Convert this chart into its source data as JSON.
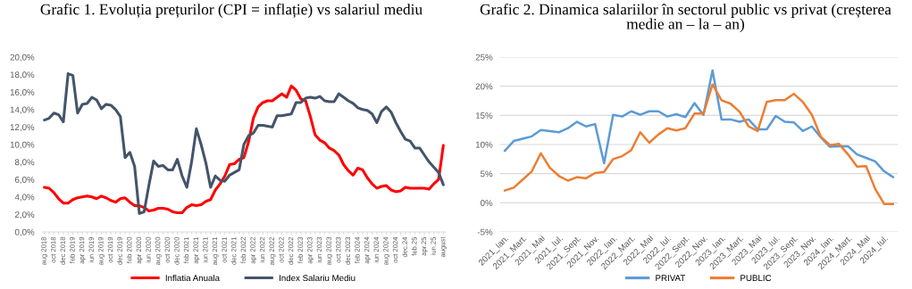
{
  "chart_data": [
    {
      "type": "line",
      "title": "Grafic 1. Evoluția prețurilor (CPI = inflație) vs salariul mediu",
      "categories": [
        "aug 2018",
        null,
        "oct 2018",
        null,
        "dec 2018",
        null,
        "feb 2019",
        null,
        "apr 2019",
        null,
        "iun 2019",
        null,
        "aug 2019",
        null,
        "oct 2019",
        null,
        "dec 2019",
        null,
        "feb 2020",
        null,
        "apr 2020",
        null,
        "iun 2020",
        null,
        "aug 2020",
        null,
        "oct 2020",
        null,
        "dec 2020",
        null,
        "feb 2021",
        null,
        "apr 2021",
        null,
        "iun 2021",
        null,
        "aug 2021",
        null,
        "oct 2021",
        null,
        "dec 2021",
        null,
        "feb 2022",
        null,
        "apr 2022",
        null,
        "iun 2022",
        null,
        "aug 2022",
        null,
        "oct 2022",
        null,
        "dec 2022",
        null,
        "feb 2023",
        null,
        "apr 2023",
        null,
        "iun 2023",
        null,
        "aug 2023",
        null,
        "oct 2023",
        null,
        "dec 2023",
        null,
        "feb 2024",
        null,
        "apr 2024",
        null,
        "iun 2024",
        null,
        "aug 2024",
        null,
        "oct 2024",
        null,
        "dec.24",
        null,
        "feb.25",
        null,
        "apr.25",
        null,
        "iun.25",
        null,
        "august"
      ],
      "series": [
        {
          "name": "Inflatia Anuala",
          "color": "#ff0000",
          "values": [
            5.1,
            5.0,
            4.5,
            3.8,
            3.3,
            3.3,
            3.7,
            3.9,
            4.0,
            4.1,
            4.0,
            3.8,
            4.1,
            3.9,
            3.6,
            3.4,
            3.8,
            3.9,
            3.4,
            3.0,
            3.0,
            2.8,
            2.4,
            2.5,
            2.7,
            2.7,
            2.6,
            2.3,
            2.2,
            2.2,
            2.8,
            3.1,
            3.0,
            3.1,
            3.5,
            3.7,
            4.8,
            5.5,
            6.4,
            7.7,
            7.8,
            8.3,
            8.5,
            10.3,
            13.0,
            14.3,
            14.8,
            15.0,
            15.0,
            15.4,
            15.8,
            15.4,
            16.7,
            16.2,
            15.2,
            15.0,
            13.2,
            11.1,
            10.5,
            10.2,
            9.6,
            9.3,
            8.8,
            7.7,
            7.0,
            6.5,
            7.3,
            7.1,
            6.2,
            5.5,
            5.0,
            5.2,
            5.3,
            4.8,
            4.6,
            4.7,
            5.1,
            5.0,
            5.0,
            5.0,
            5.0,
            4.9,
            5.5,
            6.0,
            9.9
          ]
        },
        {
          "name": "Index Salariu Mediu",
          "color": "#44546a",
          "values": [
            12.8,
            13.0,
            13.6,
            13.4,
            12.6,
            18.1,
            17.9,
            13.6,
            14.6,
            14.7,
            15.4,
            15.1,
            14.1,
            14.6,
            14.5,
            14.0,
            13.2,
            8.5,
            9.1,
            7.5,
            2.1,
            2.3,
            5.3,
            8.1,
            7.5,
            7.6,
            7.1,
            7.1,
            8.3,
            6.4,
            5.1,
            8.0,
            11.8,
            10.0,
            7.9,
            5.1,
            6.4,
            5.9,
            5.8,
            6.5,
            6.8,
            7.1,
            10.0,
            11.0,
            11.3,
            12.2,
            12.2,
            12.1,
            12.0,
            13.3,
            13.3,
            13.4,
            13.5,
            14.8,
            14.8,
            15.3,
            15.4,
            15.3,
            15.5,
            15.0,
            14.9,
            14.9,
            15.8,
            15.4,
            15.0,
            14.7,
            14.2,
            14.0,
            13.9,
            13.5,
            12.5,
            13.8,
            14.3,
            13.7,
            12.5,
            11.5,
            10.6,
            10.4,
            9.6,
            9.6,
            8.8,
            8.0,
            7.4,
            6.8,
            5.4
          ]
        }
      ],
      "ylim": [
        0,
        20
      ],
      "yticks": [
        {
          "value": 0,
          "label": "0,0%"
        },
        {
          "value": 2,
          "label": "2,0%"
        },
        {
          "value": 4,
          "label": "4,0%"
        },
        {
          "value": 6,
          "label": "6,0%"
        },
        {
          "value": 8,
          "label": "8,0%"
        },
        {
          "value": 10,
          "label": "10,0%"
        },
        {
          "value": 12,
          "label": "12,0%"
        },
        {
          "value": 14,
          "label": "14,0%"
        },
        {
          "value": 16,
          "label": "16,0%"
        },
        {
          "value": 18,
          "label": "18,0%"
        },
        {
          "value": 20,
          "label": "20,0%"
        }
      ],
      "grid": false,
      "legend": "bottom"
    },
    {
      "type": "line",
      "title": "Grafic 2. Dinamica salariilor în sectorul public vs privat (creșterea medie an – la – an)",
      "categories": [
        "2021_Ian.",
        null,
        "2021_Mart.",
        null,
        "2021_Mai",
        null,
        "2021_Iul.",
        null,
        "2021_Sept.",
        null,
        "2021_Nov.",
        null,
        "2022_Ian.",
        null,
        "2022_Mart.",
        null,
        "2022_Mai",
        null,
        "2022_Iul.",
        null,
        "2022_Sept.",
        null,
        "2022_Nov.",
        null,
        "2023_Ian.",
        null,
        "2023_Mart.",
        null,
        "2023_Mai",
        null,
        "2023_Iul.",
        null,
        "2023_Sept.",
        null,
        "2023_Nov.",
        null,
        "2024_Ian.",
        null,
        "2024_Mart.",
        null,
        "2024_Mai",
        null,
        "2024_Iul.",
        null
      ],
      "series": [
        {
          "name": "PRIVAT",
          "color": "#5b9bd5",
          "values": [
            8.9,
            10.6,
            11.0,
            11.4,
            12.5,
            12.3,
            12.1,
            12.8,
            13.9,
            13.1,
            13.5,
            6.8,
            15.1,
            14.8,
            15.7,
            15.1,
            15.7,
            15.7,
            14.8,
            15.2,
            14.7,
            17.1,
            15.1,
            22.7,
            14.3,
            14.3,
            13.9,
            14.3,
            12.6,
            12.6,
            14.9,
            13.9,
            13.8,
            12.3,
            13.1,
            11.2,
            9.6,
            9.7,
            9.7,
            8.3,
            7.7,
            7.1,
            5.4,
            4.4
          ]
        },
        {
          "name": "PUBLIC",
          "color": "#ed7d31",
          "values": [
            2.1,
            2.6,
            4.0,
            5.4,
            8.5,
            6.0,
            4.6,
            3.8,
            4.4,
            4.2,
            5.1,
            5.3,
            7.5,
            8.0,
            9.0,
            12.1,
            10.3,
            11.7,
            12.8,
            12.4,
            12.8,
            15.3,
            15.3,
            20.3,
            17.6,
            17.0,
            15.6,
            13.1,
            12.3,
            17.3,
            17.6,
            17.6,
            18.7,
            17.3,
            15.1,
            11.3,
            9.9,
            10.1,
            8.3,
            6.2,
            6.3,
            2.4,
            -0.2,
            -0.2
          ]
        }
      ],
      "ylim": [
        -5,
        25
      ],
      "yticks": [
        {
          "value": -5,
          "label": "-5%"
        },
        {
          "value": 0,
          "label": "0%"
        },
        {
          "value": 5,
          "label": "5%"
        },
        {
          "value": 10,
          "label": "10%"
        },
        {
          "value": 15,
          "label": "15%"
        },
        {
          "value": 20,
          "label": "20%"
        },
        {
          "value": 25,
          "label": "25%"
        }
      ],
      "grid": "y",
      "legend": "bottom"
    }
  ]
}
